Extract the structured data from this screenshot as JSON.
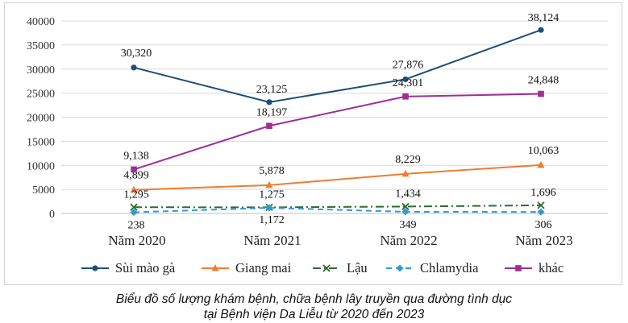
{
  "chart_data": {
    "type": "line",
    "categories": [
      "Năm 2020",
      "Năm 2021",
      "Năm 2022",
      "Năm 2023"
    ],
    "ylim": [
      0,
      40000
    ],
    "yticks": [
      0,
      5000,
      10000,
      15000,
      20000,
      25000,
      30000,
      35000,
      40000
    ],
    "grid": true,
    "legend_position": "bottom",
    "series": [
      {
        "name": "Sùi mào gà",
        "values": [
          30320,
          23125,
          27876,
          38124
        ],
        "labels": [
          "30,320",
          "23,125",
          "27,876",
          "38,124"
        ],
        "color": "#1f4e79",
        "marker": "circle",
        "dash": "solid"
      },
      {
        "name": "Giang mai",
        "values": [
          4899,
          5878,
          8229,
          10063
        ],
        "labels": [
          "4,899",
          "5,878",
          "8,229",
          "10,063"
        ],
        "color": "#ed7d31",
        "marker": "triangle",
        "dash": "solid"
      },
      {
        "name": "Lậu",
        "values": [
          1295,
          1275,
          1434,
          1696
        ],
        "labels": [
          "1,295",
          "1,275",
          "1,434",
          "1,696"
        ],
        "color": "#2e6b30",
        "marker": "x",
        "dash": "dashdot"
      },
      {
        "name": "Chlamydia",
        "values": [
          238,
          1172,
          349,
          306
        ],
        "labels": [
          "238",
          "1,172",
          "349",
          "306"
        ],
        "color": "#2e9bd6",
        "marker": "diamond",
        "dash": "dash"
      },
      {
        "name": "khác",
        "values": [
          9138,
          18197,
          24301,
          24848
        ],
        "labels": [
          "9,138",
          "18,197",
          "24,301",
          "24,848"
        ],
        "color": "#9e2f94",
        "marker": "square",
        "dash": "solid"
      }
    ]
  },
  "caption": {
    "line1": "Biểu đồ số lượng khám bệnh, chữa bệnh lây truyền qua đường tình dục",
    "line2": "tại Bệnh viện Da Liễu từ 2020 đến 2023"
  }
}
